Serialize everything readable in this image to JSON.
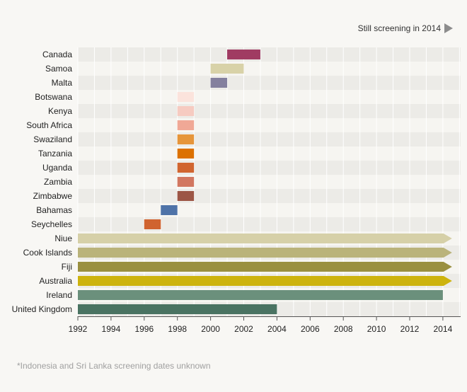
{
  "legend": {
    "label": "Still screening in 2014"
  },
  "footnote": "*Indonesia and Sri Lanka screening dates unknown",
  "chart_data": {
    "type": "bar",
    "orientation": "horizontal-range",
    "xlim": [
      1992,
      2015
    ],
    "x_ticks": [
      "1992",
      "1994",
      "1996",
      "1998",
      "2000",
      "2002",
      "2004",
      "2006",
      "2008",
      "2010",
      "2012",
      "2014"
    ],
    "categories": [
      "Canada",
      "Samoa",
      "Malta",
      "Botswana",
      "Kenya",
      "South Africa",
      "Swaziland",
      "Tanzania",
      "Uganda",
      "Zambia",
      "Zimbabwe",
      "Bahamas",
      "Seychelles",
      "Niue",
      "Cook Islands",
      "Fiji",
      "Australia",
      "Ireland",
      "United Kingdom"
    ],
    "bars": [
      {
        "country": "Canada",
        "start": 2001,
        "end": 2003,
        "ongoing": false,
        "color": "#a03b62"
      },
      {
        "country": "Samoa",
        "start": 2000,
        "end": 2002,
        "ongoing": false,
        "color": "#d8d2a8"
      },
      {
        "country": "Malta",
        "start": 2000,
        "end": 2001,
        "ongoing": false,
        "color": "#84809e"
      },
      {
        "country": "Botswana",
        "start": 1998,
        "end": 1999,
        "ongoing": false,
        "color": "#fbe3dc"
      },
      {
        "country": "Kenya",
        "start": 1998,
        "end": 1999,
        "ongoing": false,
        "color": "#f6cbc1"
      },
      {
        "country": "South Africa",
        "start": 1998,
        "end": 1999,
        "ongoing": false,
        "color": "#f0a896"
      },
      {
        "country": "Swaziland",
        "start": 1998,
        "end": 1999,
        "ongoing": false,
        "color": "#e6953a"
      },
      {
        "country": "Tanzania",
        "start": 1998,
        "end": 1999,
        "ongoing": false,
        "color": "#dc7100"
      },
      {
        "country": "Uganda",
        "start": 1998,
        "end": 1999,
        "ongoing": false,
        "color": "#d1652f"
      },
      {
        "country": "Zambia",
        "start": 1998,
        "end": 1999,
        "ongoing": false,
        "color": "#d27760"
      },
      {
        "country": "Zimbabwe",
        "start": 1998,
        "end": 1999,
        "ongoing": false,
        "color": "#9c5646"
      },
      {
        "country": "Bahamas",
        "start": 1997,
        "end": 1998,
        "ongoing": false,
        "color": "#4f73a8"
      },
      {
        "country": "Seychelles",
        "start": 1996,
        "end": 1997,
        "ongoing": false,
        "color": "#d0632f"
      },
      {
        "country": "Niue",
        "start": 1992,
        "end": 2014,
        "ongoing": true,
        "color": "#d6d0a8"
      },
      {
        "country": "Cook Islands",
        "start": 1992,
        "end": 2014,
        "ongoing": true,
        "color": "#bab37a"
      },
      {
        "country": "Fiji",
        "start": 1992,
        "end": 2014,
        "ongoing": true,
        "color": "#9a9040"
      },
      {
        "country": "Australia",
        "start": 1992,
        "end": 2014,
        "ongoing": true,
        "color": "#cdb30e"
      },
      {
        "country": "Ireland",
        "start": 1992,
        "end": 2014,
        "ongoing": false,
        "color": "#6b907c"
      },
      {
        "country": "United Kingdom",
        "start": 1992,
        "end": 2004,
        "ongoing": false,
        "color": "#4a7362"
      }
    ],
    "legend_position": "top-right",
    "grid": true
  }
}
